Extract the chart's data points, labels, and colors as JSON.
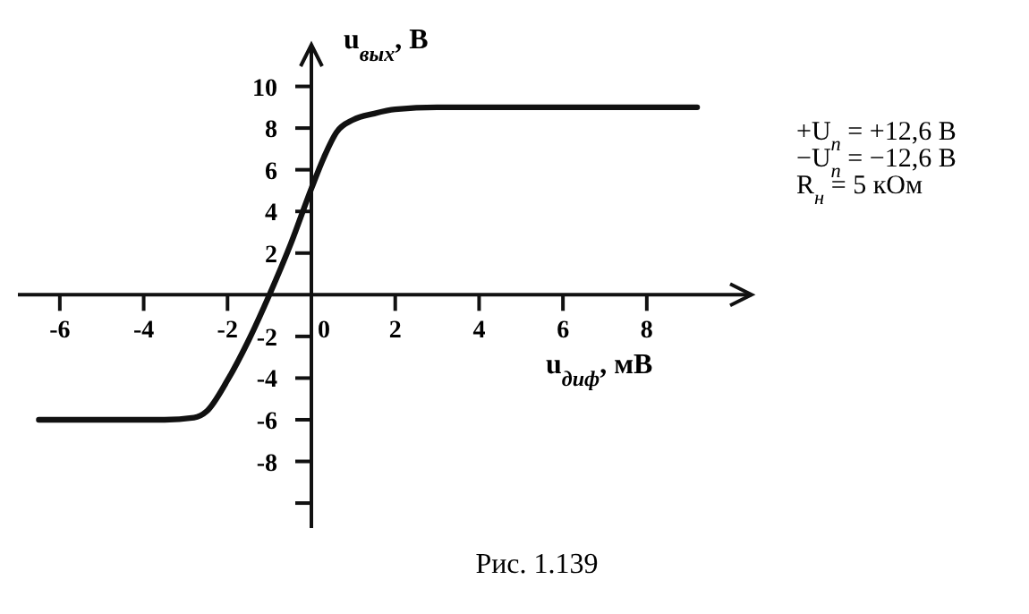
{
  "chart_data": {
    "type": "line",
    "xlabel": "u$_{диф}$, мВ",
    "ylabel": "u$_{вых}$, В",
    "x": [
      -6.5,
      -3.5,
      -2.8,
      -2.5,
      -2,
      -1.5,
      -1,
      -0.5,
      0,
      0.3,
      0.6,
      1,
      1.5,
      2,
      3,
      5,
      9.2
    ],
    "series": [
      {
        "color": "#111111",
        "values": [
          -6,
          -6,
          -5.9,
          -5.6,
          -4.1,
          -2.2,
          0,
          2.4,
          5.1,
          6.6,
          7.8,
          8.4,
          8.7,
          8.9,
          9,
          9,
          9
        ]
      }
    ],
    "xlim": [
      -7,
      10.5
    ],
    "ylim": [
      -11.2,
      12
    ],
    "xticks": [
      -6,
      -4,
      -2,
      0,
      2,
      4,
      6,
      8
    ],
    "yticks": [
      {
        "value": -10,
        "label": null
      },
      -8,
      -6,
      -4,
      -2,
      2,
      4,
      6,
      8,
      10
    ],
    "grid": false,
    "marker": "none",
    "line_style": "solid",
    "annotations": [
      "+U$_{п}$ = +12,6 В",
      "−U$_{п}$ = −12,6 В",
      "R$_{н}$ = 5 кОм",
      "Рис. 1.139"
    ]
  }
}
